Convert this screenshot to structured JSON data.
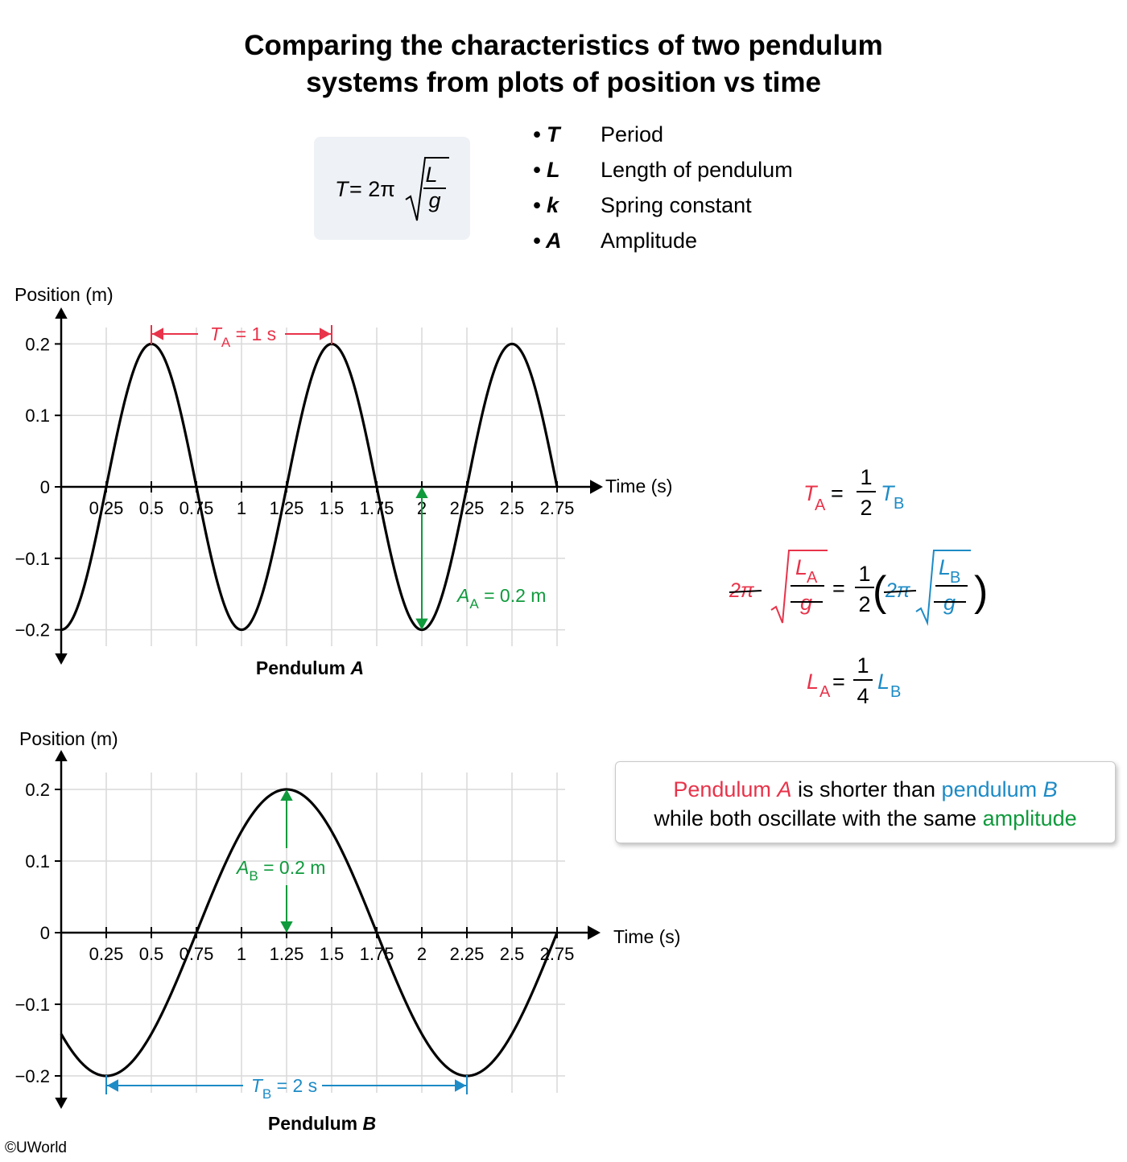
{
  "title_line1": "Comparing the characteristics of two pendulum",
  "title_line2": "systems from plots of position vs time",
  "formula": {
    "lhs": "T",
    "eq": "= 2π",
    "num": "L",
    "den": "g"
  },
  "legend": [
    {
      "symbol": "• T",
      "description": "Period"
    },
    {
      "symbol": "• L",
      "description": "Length of pendulum"
    },
    {
      "symbol": "• k",
      "description": "Spring constant"
    },
    {
      "symbol": "• A",
      "description": "Amplitude"
    }
  ],
  "colors": {
    "red": "#e8334a",
    "blue": "#1d8bc6",
    "green": "#0f9a3c",
    "curve": "#000000",
    "grid": "#d9d9d9"
  },
  "chart_data": [
    {
      "type": "line",
      "title": "Pendulum A",
      "ylabel": "Position (m)",
      "xlabel": "Time (s)",
      "x_ticks": [
        "0.25",
        "0.5",
        "0.75",
        "1",
        "1.25",
        "1.5",
        "1.75",
        "2",
        "2.25",
        "2.5",
        "2.75"
      ],
      "y_ticks": [
        "0.2",
        "0.1",
        "0",
        "−0.1",
        "−0.2"
      ],
      "xlim": [
        0,
        2.75
      ],
      "ylim": [
        -0.2,
        0.2
      ],
      "grid": true,
      "series": [
        {
          "function": "y = -0.2·cos(2πt/1)",
          "amplitude": 0.2,
          "period": 1
        }
      ],
      "annotations": {
        "period": {
          "sym": "T",
          "sub": "A",
          "value": "= 1 s",
          "from": 0.5,
          "to": 1.5
        },
        "amplitude": {
          "sym": "A",
          "sub": "A",
          "value": "= 0.2 m",
          "at": 2
        }
      }
    },
    {
      "type": "line",
      "title": "Pendulum B",
      "ylabel": "Position (m)",
      "xlabel": "Time (s)",
      "x_ticks": [
        "0.25",
        "0.5",
        "0.75",
        "1",
        "1.25",
        "1.5",
        "1.75",
        "2",
        "2.25",
        "2.5",
        "2.75"
      ],
      "y_ticks": [
        "0.2",
        "0.1",
        "0",
        "−0.1",
        "−0.2"
      ],
      "xlim": [
        0,
        2.75
      ],
      "ylim": [
        -0.2,
        0.2
      ],
      "grid": true,
      "series": [
        {
          "function": "y = -0.2·cos(2π(t−0.25)/2)",
          "amplitude": 0.2,
          "period": 2
        }
      ],
      "annotations": {
        "period": {
          "sym": "T",
          "sub": "B",
          "value": "= 2 s",
          "from": 0.25,
          "to": 2.25
        },
        "amplitude": {
          "sym": "A",
          "sub": "B",
          "value": "= 0.2 m",
          "at": 1.25
        }
      }
    }
  ],
  "derivation": {
    "eq1": {
      "lhs_sym": "T",
      "lhs_sub": "A",
      "eq": "=",
      "frac_num": "1",
      "frac_den": "2",
      "rhs_sym": "T",
      "rhs_sub": "B"
    },
    "eq2": {
      "two_pi": "2π",
      "L": "L",
      "sub_a": "A",
      "sub_b": "B",
      "g": "g",
      "eq": "=",
      "frac_num": "1",
      "frac_den": "2",
      "lparen": "(",
      "rparen": ")"
    },
    "eq3": {
      "lhs_sym": "L",
      "lhs_sub": "A",
      "eq": "=",
      "frac_num": "1",
      "frac_den": "4",
      "rhs_sym": "L",
      "rhs_sub": "B"
    }
  },
  "note": {
    "part1": "Pendulum ",
    "part1_sym": "A",
    "part2": " is shorter than ",
    "part3": "pendulum ",
    "part3_sym": "B",
    "part4": "while both oscillate with the same ",
    "part5": "amplitude"
  },
  "copyright": "©UWorld"
}
